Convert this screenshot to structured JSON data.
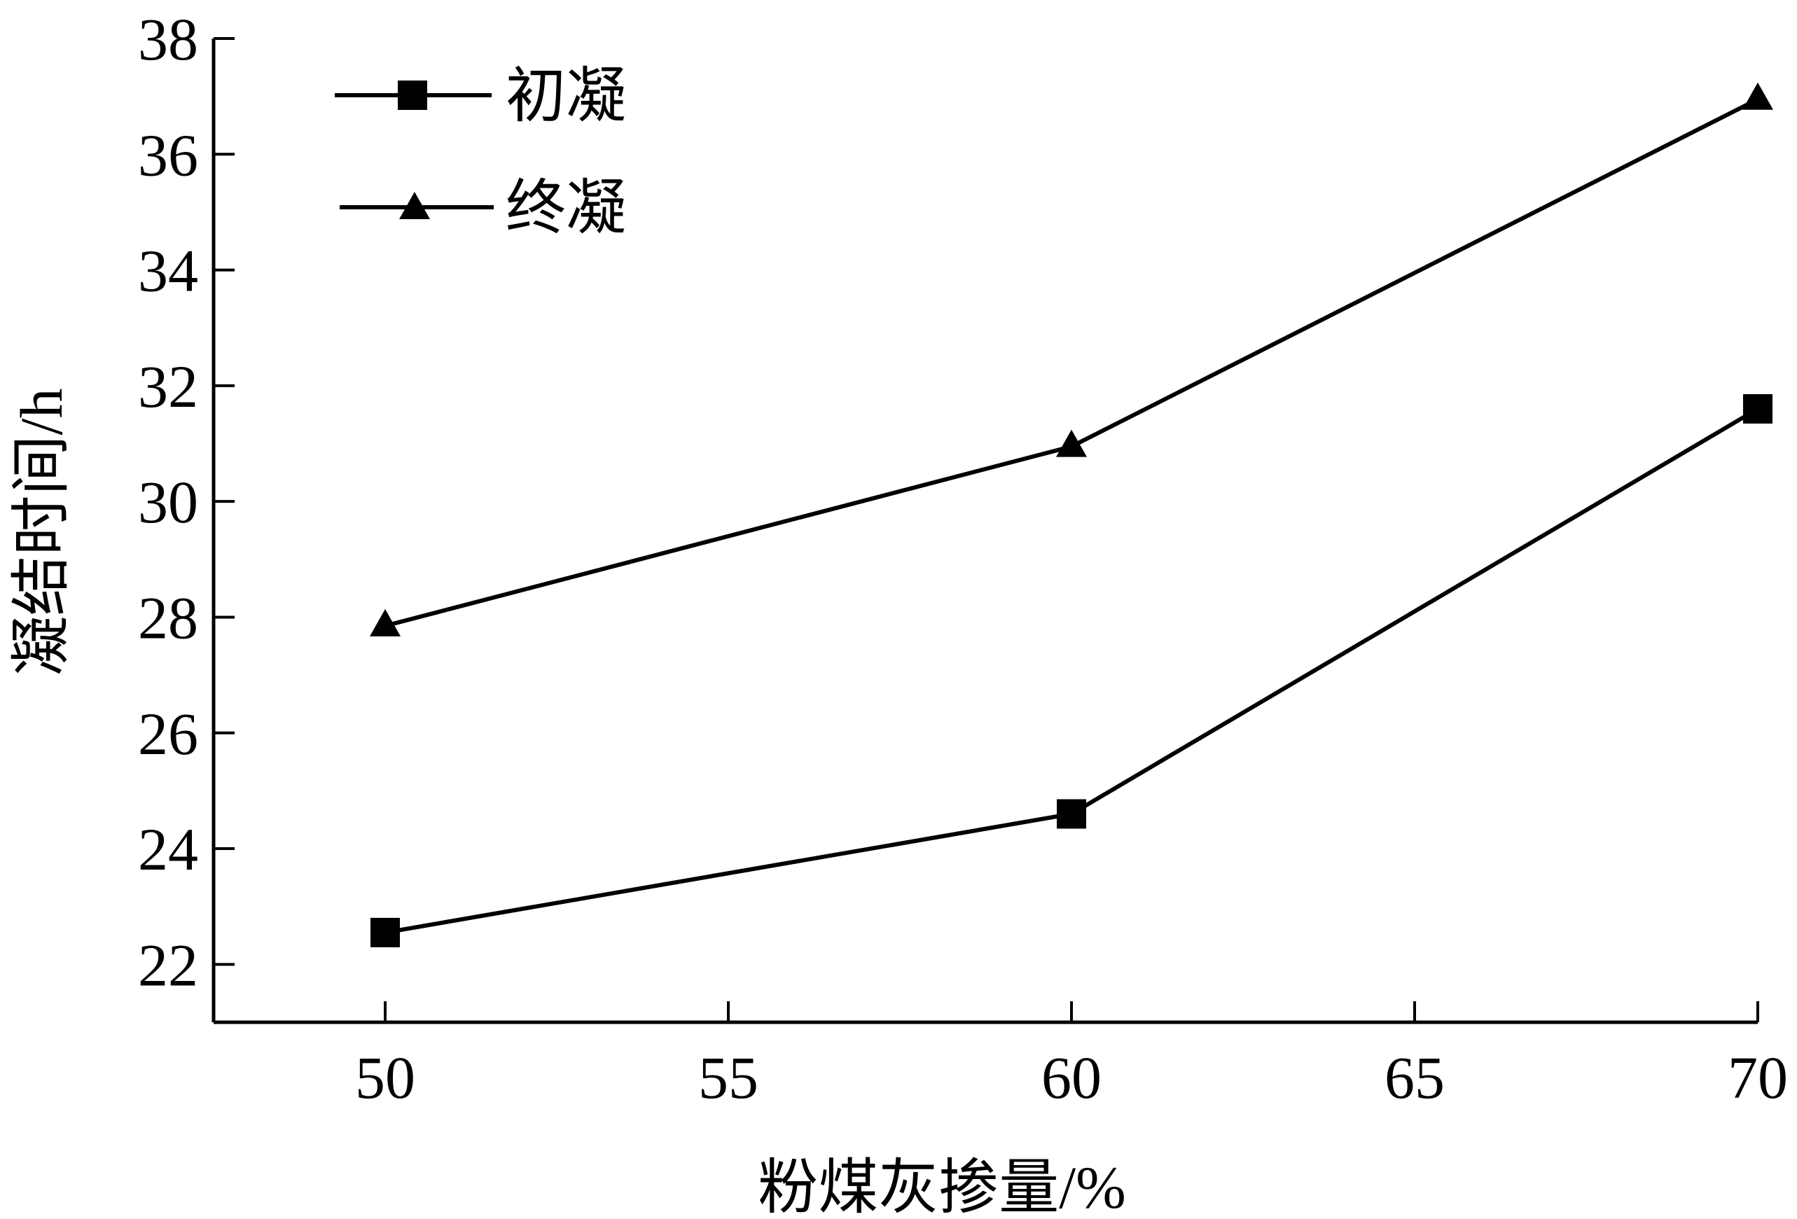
{
  "chart_data": {
    "type": "line",
    "xlabel": "粉煤灰掺量/%",
    "ylabel": "凝结时间/h",
    "xlim": [
      47.5,
      70
    ],
    "ylim": [
      21,
      38
    ],
    "x_ticks": [
      50,
      55,
      60,
      65,
      70
    ],
    "y_ticks": [
      22,
      24,
      26,
      28,
      30,
      32,
      34,
      36,
      38
    ],
    "grid": false,
    "legend_position": "top-left",
    "x": [
      50,
      60,
      70
    ],
    "series": [
      {
        "name": "初凝",
        "marker": "square",
        "color": "#000000",
        "values": [
          22.55,
          24.6,
          31.6
        ]
      },
      {
        "name": "终凝",
        "marker": "triangle",
        "color": "#000000",
        "values": [
          27.85,
          30.95,
          36.95
        ]
      }
    ]
  }
}
